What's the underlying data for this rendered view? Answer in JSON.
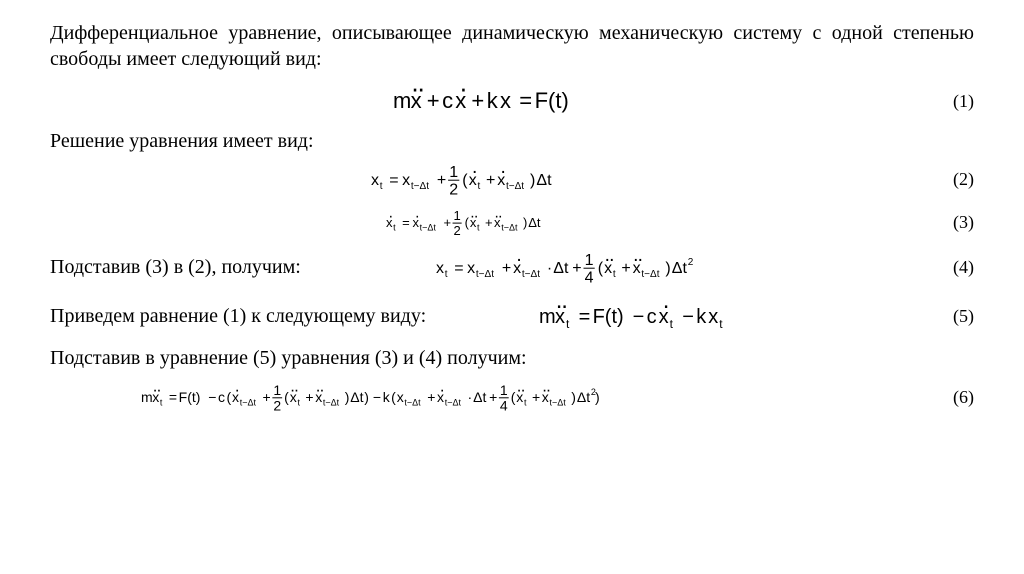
{
  "intro": "Дифференциальное уравнение, описывающее динамическую механическую систему с одной степенью свободы имеет следующий вид:",
  "solution_text": "Решение уравнения имеет вид:",
  "subst_32_text": "Подставив (3) в (2), получим:",
  "rearrange_text": "Приведем равнение (1) к следующему виду:",
  "subst_534_text": "Подставив в уравнение (5) уравнения (3) и (4) получим:",
  "eq_numbers": {
    "e1": "(1)",
    "e2": "(2)",
    "e3": "(3)",
    "e4": "(4)",
    "e5": "(5)",
    "e6": "(6)"
  },
  "equations": {
    "eq1": {
      "terms": [
        "m",
        "x¨",
        " + ",
        "c",
        "x˙",
        " + ",
        "k",
        "x",
        " = ",
        "F(t)"
      ],
      "fontsize_main": 22
    },
    "eq2": {
      "lhs_base": "x",
      "lhs_sub": "t",
      "rhs_a_base": "x",
      "rhs_a_sub": "t−Δt",
      "frac_num": "1",
      "frac_den": "2",
      "paren_a_base": "x˙",
      "paren_a_sub": "t",
      "paren_b_base": "x˙",
      "paren_b_sub": "t−Δt",
      "tail": "Δt",
      "fontsize_main": 16,
      "fontsize_sub": 10
    },
    "eq3": {
      "lhs_base": "x˙",
      "lhs_sub": "t",
      "rhs_a_base": "x˙",
      "rhs_a_sub": "t−Δt",
      "frac_num": "1",
      "frac_den": "2",
      "paren_a_base": "x¨",
      "paren_a_sub": "t",
      "paren_b_base": "x¨",
      "paren_b_sub": "t−Δt",
      "tail": "Δt",
      "fontsize_main": 13,
      "fontsize_sub": 9
    },
    "eq4": {
      "lhs_base": "x",
      "lhs_sub": "t",
      "term1_base": "x",
      "term1_sub": "t−Δt",
      "term2_base": "x˙",
      "term2_sub": "t−Δt",
      "term2_tail": "Δt",
      "frac_num": "1",
      "frac_den": "4",
      "paren_a_base": "x¨",
      "paren_a_sub": "t",
      "paren_b_base": "x¨",
      "paren_b_sub": "t−Δt",
      "tail": "Δt",
      "tail_sup": "2",
      "fontsize_main": 16,
      "fontsize_sub": 10
    },
    "eq5": {
      "lhs_m": "m",
      "lhs_base": "x¨",
      "lhs_sub": "t",
      "rhs_F": "F(t)",
      "minus1_c": "c",
      "minus1_base": "x˙",
      "minus1_sub": "t",
      "minus2_k": "k",
      "minus2_base": "x",
      "minus2_sub": "t",
      "fontsize_main": 20,
      "fontsize_sub": 12
    },
    "eq6": {
      "lhs_m": "m",
      "lhs_base": "x¨",
      "lhs_sub": "t",
      "rhs_F": "F(t)",
      "c": "c",
      "c_term1_base": "x˙",
      "c_term1_sub": "t−Δt",
      "c_frac_num": "1",
      "c_frac_den": "2",
      "c_paren_a_base": "x¨",
      "c_paren_a_sub": "t",
      "c_paren_b_base": "x¨",
      "c_paren_b_sub": "t−Δt",
      "c_tail": "Δt",
      "k": "k",
      "k_term1_base": "x",
      "k_term1_sub": "t−Δt",
      "k_term2_base": "x˙",
      "k_term2_sub": "t−Δt",
      "k_term2_tail": "Δt",
      "k_frac_num": "1",
      "k_frac_den": "4",
      "k_paren_a_base": "x¨",
      "k_paren_a_sub": "t",
      "k_paren_b_base": "x¨",
      "k_paren_b_sub": "t−Δt",
      "k_tail": "Δt",
      "k_tail_sup": "2",
      "fontsize_main": 14,
      "fontsize_sub": 9
    }
  },
  "colors": {
    "text": "#000000",
    "background": "#ffffff"
  }
}
